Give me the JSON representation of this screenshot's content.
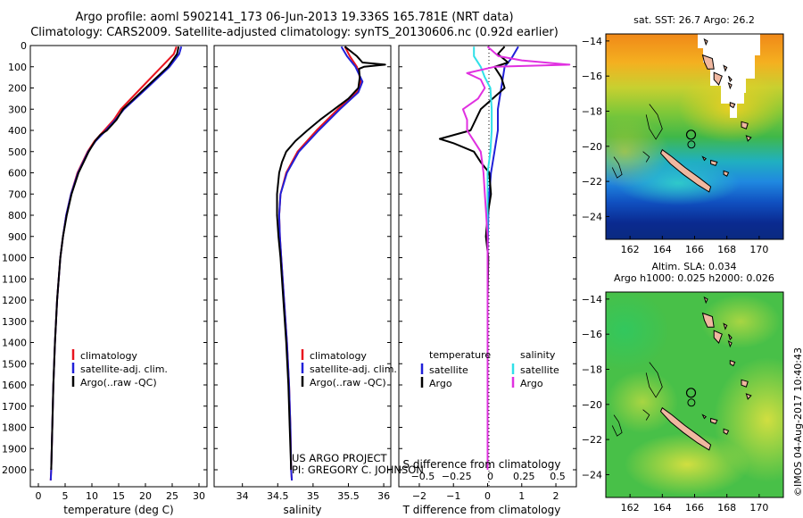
{
  "header": {
    "line1": "Argo profile: aoml 5902141_173 06-Jun-2013 19.336S 165.781E (NRT data)",
    "line2": "Climatology: CARS2009. Satellite-adjusted climatology: synTS_20130606.nc (0.92d earlier)"
  },
  "credits": {
    "line1": "US ARGO PROJECT",
    "line2": "PI: GREGORY C. JOHNSON"
  },
  "stamp": "©IMOS 04-Aug-2017 10:40:43",
  "colors": {
    "red": "#e8141e",
    "blue": "#2020d8",
    "black": "#000000",
    "cyan": "#30e0e8",
    "magenta": "#e030e0"
  },
  "chart_data": [
    {
      "type": "line",
      "xlabel": "temperature (deg C)",
      "ylabel": "",
      "xlim": [
        -1.5,
        31.5
      ],
      "ylim": [
        2080,
        0
      ],
      "xticks": [
        0,
        5,
        10,
        15,
        20,
        25,
        30
      ],
      "yticks": [
        0,
        100,
        200,
        300,
        400,
        500,
        600,
        700,
        800,
        900,
        1000,
        1100,
        1200,
        1300,
        1400,
        1500,
        1600,
        1700,
        1800,
        1900,
        2000
      ],
      "legend": [
        "climatology",
        "satellite-adj. clim.",
        "Argo(..raw -QC)"
      ],
      "legend_position": "bottom-center",
      "series": [
        {
          "name": "climatology",
          "color": "red",
          "y": [
            5,
            40,
            100,
            200,
            300,
            350,
            400,
            450,
            500,
            600,
            700,
            800,
            900,
            1000,
            1200,
            1400,
            1600,
            1800,
            2000,
            2050
          ],
          "x": [
            25.8,
            25.3,
            23.0,
            19.2,
            15.4,
            14.1,
            12.3,
            10.5,
            9.2,
            7.3,
            6.1,
            5.2,
            4.6,
            4.1,
            3.5,
            3.1,
            2.8,
            2.6,
            2.4,
            2.3
          ]
        },
        {
          "name": "satellite-adj. clim.",
          "color": "blue",
          "y": [
            5,
            40,
            100,
            200,
            300,
            350,
            400,
            450,
            500,
            600,
            700,
            800,
            900,
            1000,
            1200,
            1400,
            1600,
            1800,
            2000,
            2050
          ],
          "x": [
            26.7,
            26.3,
            24.5,
            20.3,
            16.0,
            14.4,
            12.6,
            10.7,
            9.3,
            7.4,
            6.1,
            5.2,
            4.6,
            4.1,
            3.5,
            3.1,
            2.8,
            2.6,
            2.4,
            2.3
          ]
        },
        {
          "name": "Argo(..raw -QC)",
          "color": "black",
          "y": [
            5,
            40,
            100,
            200,
            300,
            350,
            400,
            420,
            450,
            500,
            600,
            700,
            800,
            900,
            1000,
            1200,
            1400,
            1600,
            1800,
            2000
          ],
          "x": [
            26.2,
            25.9,
            24.2,
            20.0,
            15.8,
            14.6,
            12.8,
            11.6,
            10.6,
            9.4,
            7.5,
            6.2,
            5.3,
            4.6,
            4.1,
            3.5,
            3.1,
            2.8,
            2.6,
            2.4
          ]
        }
      ]
    },
    {
      "type": "line",
      "xlabel": "salinity",
      "xlim": [
        33.6,
        36.1
      ],
      "ylim": [
        2080,
        0
      ],
      "xticks": [
        34,
        34.5,
        35,
        35.5,
        36
      ],
      "legend": [
        "climatology",
        "satellite-adj. clim.",
        "Argo(..raw -QC)"
      ],
      "legend_position": "bottom-center",
      "series": [
        {
          "name": "climatology",
          "color": "red",
          "y": [
            5,
            50,
            100,
            170,
            220,
            300,
            400,
            500,
            600,
            700,
            800,
            900,
            1000,
            1200,
            1400,
            1600,
            1800,
            2000,
            2050
          ],
          "x": [
            35.45,
            35.52,
            35.62,
            35.68,
            35.62,
            35.35,
            35.05,
            34.78,
            34.62,
            34.54,
            34.52,
            34.53,
            34.55,
            34.59,
            34.63,
            34.66,
            34.68,
            34.69,
            34.7
          ]
        },
        {
          "name": "satellite-adj. clim.",
          "color": "blue",
          "y": [
            5,
            50,
            100,
            170,
            220,
            300,
            400,
            500,
            600,
            700,
            800,
            900,
            1000,
            1200,
            1400,
            1600,
            1800,
            2000,
            2050
          ],
          "x": [
            35.4,
            35.48,
            35.6,
            35.7,
            35.64,
            35.38,
            35.08,
            34.8,
            34.63,
            34.54,
            34.52,
            34.53,
            34.55,
            34.59,
            34.63,
            34.66,
            34.68,
            34.69,
            34.7
          ]
        },
        {
          "name": "Argo(..raw -QC)",
          "color": "black",
          "y": [
            5,
            50,
            80,
            90,
            100,
            110,
            150,
            200,
            250,
            300,
            350,
            400,
            450,
            500,
            550,
            600,
            700,
            800,
            900,
            1000,
            1200,
            1400,
            1600,
            1800,
            2000
          ],
          "x": [
            35.45,
            35.62,
            35.7,
            36.02,
            35.72,
            35.65,
            35.66,
            35.64,
            35.5,
            35.3,
            35.1,
            34.92,
            34.75,
            34.62,
            34.56,
            34.52,
            34.49,
            34.49,
            34.51,
            34.54,
            34.58,
            34.62,
            34.65,
            34.67,
            34.69
          ]
        }
      ]
    },
    {
      "type": "line",
      "xlabel": "T difference from climatology",
      "xlabel2": "S difference from climatology",
      "xlim": [
        -2.6,
        2.6
      ],
      "ylim": [
        2080,
        0
      ],
      "xticks": [
        -2,
        -1,
        0,
        1,
        2
      ],
      "xticks2": [
        -0.5,
        -0.25,
        0,
        0.25,
        0.5
      ],
      "legend_temperature": {
        "header": "temperature",
        "items": [
          "satellite",
          "Argo"
        ]
      },
      "legend_salinity": {
        "header": "salinity",
        "items": [
          "satellite",
          "Argo"
        ]
      },
      "series": [
        {
          "name": "temperature satellite",
          "color": "blue",
          "y": [
            5,
            60,
            100,
            200,
            300,
            400,
            500,
            600,
            700,
            800,
            1000,
            1500,
            2000
          ],
          "x": [
            0.9,
            0.7,
            0.5,
            0.4,
            0.3,
            0.3,
            0.2,
            0.1,
            0.05,
            0.02,
            0.0,
            0.0,
            0.0
          ]
        },
        {
          "name": "temperature Argo",
          "color": "black",
          "y": [
            5,
            40,
            80,
            100,
            150,
            200,
            300,
            400,
            440,
            460,
            500,
            550,
            600,
            700,
            800,
            900,
            1000,
            1200,
            1500,
            2000
          ],
          "x": [
            0.5,
            0.3,
            0.6,
            0.2,
            0.4,
            0.5,
            -0.2,
            -0.5,
            -1.4,
            -1.0,
            -0.4,
            -0.2,
            0.05,
            0.1,
            0.0,
            -0.05,
            0.02,
            0.0,
            0.0,
            0.0
          ]
        },
        {
          "name": "salinity satellite",
          "color": "cyan",
          "y": [
            5,
            50,
            100,
            150,
            200,
            300,
            400,
            500,
            600,
            700,
            800,
            1000,
            1500,
            2000
          ],
          "x": [
            -0.1,
            -0.1,
            -0.05,
            -0.02,
            0.02,
            0.03,
            0.03,
            0.02,
            0.0,
            0.0,
            0.0,
            0.0,
            0.0,
            0.0
          ]
        },
        {
          "name": "salinity Argo",
          "color": "magenta",
          "y": [
            5,
            50,
            70,
            90,
            100,
            130,
            160,
            200,
            250,
            300,
            350,
            400,
            450,
            500,
            550,
            600,
            700,
            800,
            900,
            1000,
            1500,
            2000
          ],
          "x": [
            0.0,
            0.08,
            0.25,
            0.6,
            0.05,
            -0.15,
            -0.05,
            -0.02,
            -0.07,
            -0.18,
            -0.15,
            -0.15,
            -0.1,
            -0.05,
            -0.04,
            -0.03,
            -0.02,
            -0.01,
            0.0,
            0.0,
            0.0,
            0.0
          ]
        }
      ]
    },
    {
      "type": "heatmap",
      "title": "sat. SST: 26.7  Argo: 26.2",
      "xlim": [
        160.5,
        171.5
      ],
      "ylim": [
        -25.3,
        -13.6
      ],
      "xticks": [
        162,
        164,
        166,
        168,
        170
      ],
      "yticks": [
        -14,
        -16,
        -18,
        -20,
        -22,
        -24
      ],
      "marker": {
        "lon": 165.781,
        "lat": -19.336
      }
    },
    {
      "type": "heatmap",
      "title": "Altim. SLA: 0.034",
      "subtitle": "Argo h1000: 0.025 h2000: 0.026",
      "xlim": [
        160.5,
        171.5
      ],
      "ylim": [
        -25.3,
        -13.6
      ],
      "xticks": [
        162,
        164,
        166,
        168,
        170
      ],
      "yticks": [
        -14,
        -16,
        -18,
        -20,
        -22,
        -24
      ],
      "marker": {
        "lon": 165.781,
        "lat": -19.336
      }
    }
  ]
}
